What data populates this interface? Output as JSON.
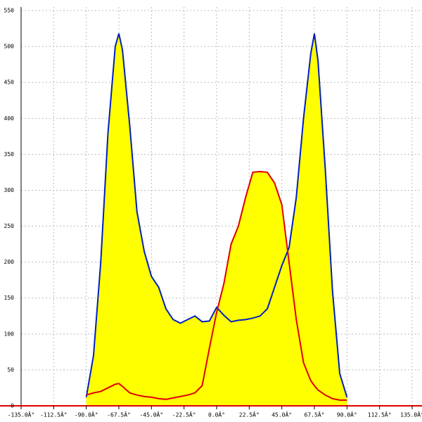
{
  "chart_data": {
    "type": "area",
    "x": [
      -90,
      -85,
      -80,
      -75,
      -70,
      -67.5,
      -65,
      -60,
      -55,
      -50,
      -45,
      -40,
      -35,
      -30,
      -25,
      -20,
      -15,
      -10,
      -5,
      0,
      5,
      10,
      15,
      20,
      25,
      30,
      35,
      40,
      45,
      50,
      55,
      60,
      65,
      67.5,
      70,
      75,
      80,
      85,
      90
    ],
    "series": [
      {
        "color": "#0020c0",
        "values": [
          12,
          70,
          200,
          380,
          500,
          518,
          495,
          390,
          270,
          215,
          180,
          165,
          135,
          120,
          115,
          120,
          125,
          117,
          118,
          137,
          126,
          117,
          119,
          120,
          122,
          125,
          135,
          165,
          195,
          220,
          290,
          400,
          490,
          518,
          480,
          330,
          160,
          45,
          12
        ]
      },
      {
        "color": "#e00000",
        "values": [
          15,
          18,
          20,
          25,
          30,
          31,
          27,
          18,
          15,
          13,
          12,
          10,
          9,
          11,
          13,
          15,
          18,
          28,
          80,
          130,
          170,
          225,
          250,
          290,
          325,
          326,
          325,
          310,
          280,
          200,
          120,
          60,
          35,
          28,
          22,
          15,
          10,
          8,
          8
        ]
      }
    ],
    "area_color": "#ffff00",
    "xlim": [
      -135,
      135
    ],
    "ylim": [
      0,
      550
    ],
    "xticks": [
      {
        "value": -135,
        "label": "-135.0Â°"
      },
      {
        "value": -112.5,
        "label": "-112.5Â°"
      },
      {
        "value": -90,
        "label": "-90.0Â°"
      },
      {
        "value": -67.5,
        "label": "-67.5Â°"
      },
      {
        "value": -45,
        "label": "-45.0Â°"
      },
      {
        "value": -22.5,
        "label": "-22.5Â°"
      },
      {
        "value": 0,
        "label": "0.0Â°"
      },
      {
        "value": 22.5,
        "label": "22.5Â°"
      },
      {
        "value": 45,
        "label": "45.0Â°"
      },
      {
        "value": 67.5,
        "label": "67.5Â°"
      },
      {
        "value": 90,
        "label": "90.0Â°"
      },
      {
        "value": 112.5,
        "label": "112.5Â°"
      },
      {
        "value": 135,
        "label": "135.0Â°"
      }
    ],
    "yticks": [
      0,
      50,
      100,
      150,
      200,
      250,
      300,
      350,
      400,
      450,
      500,
      550
    ],
    "grid": true
  }
}
